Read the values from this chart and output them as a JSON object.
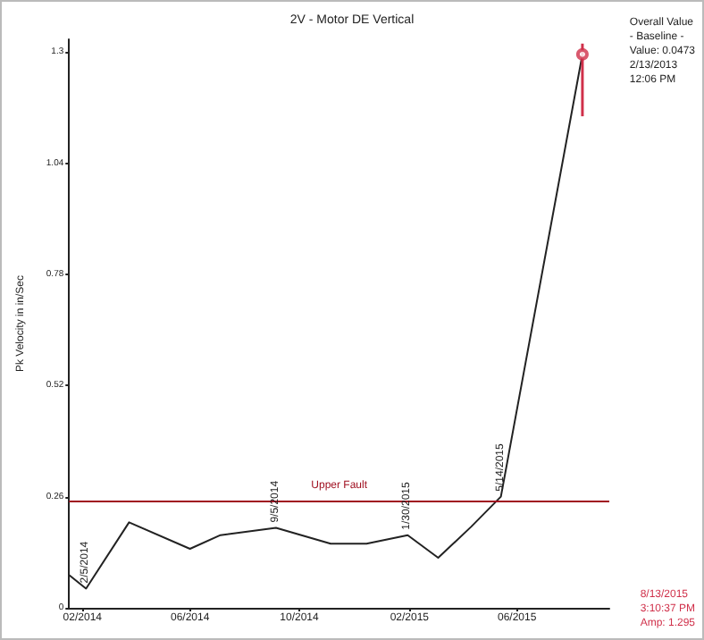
{
  "chart_data": {
    "type": "line",
    "title": "2V - Motor DE Vertical",
    "ylabel": "Pk Velocity in in/Sec",
    "xlim": [
      "2014-01-17",
      "2015-09-12"
    ],
    "xticks": [
      {
        "value": "2014-02-01",
        "label": "02/2014"
      },
      {
        "value": "2014-06-01",
        "label": "06/2014"
      },
      {
        "value": "2014-10-01",
        "label": "10/2014"
      },
      {
        "value": "2015-02-01",
        "label": "02/2015"
      },
      {
        "value": "2015-06-01",
        "label": "06/2015"
      }
    ],
    "ylim": [
      0,
      1.33
    ],
    "yticks": [
      0,
      0.26,
      0.52,
      0.78,
      1.04,
      1.3
    ],
    "series": [
      {
        "marker": "none",
        "color": "#222222",
        "x": [
          "2014-01-17",
          "2014-02-05",
          "2014-03-25",
          "2014-06-01",
          "2014-07-05",
          "2014-09-05",
          "2014-11-05",
          "2014-12-15",
          "2015-01-30",
          "2015-03-05",
          "2015-04-11",
          "2015-05-14",
          "2015-08-13"
        ],
        "values": [
          0.077,
          0.045,
          0.2,
          0.138,
          0.17,
          0.187,
          0.15,
          0.15,
          0.17,
          0.117,
          0.19,
          0.26,
          1.295
        ]
      },
      {
        "type": "scatter",
        "marker": "circle",
        "color": "#d0304a",
        "x": [
          "2015-08-13"
        ],
        "values": [
          1.295
        ],
        "errors": [
          [
            1.15,
            1.32
          ]
        ]
      }
    ],
    "ref_lines": [
      {
        "axis": "y",
        "value": 0.25,
        "label": "Upper Fault",
        "color": "#a01020"
      }
    ],
    "annotations": [
      {
        "text": "2/5/2014",
        "x": "2014-02-05",
        "y": 0.045
      },
      {
        "text": "9/5/2014",
        "x": "2014-09-05",
        "y": 0.187
      },
      {
        "text": "1/30/2015",
        "x": "2015-01-30",
        "y": 0.17
      },
      {
        "text": "5/14/2015",
        "x": "2015-05-14",
        "y": 0.26
      },
      "Overall Value\n- Baseline -\nValue: 0.0473\n2/13/2013\n12:06 PM",
      "8/13/2015\n3:10:37 PM\nAmp: 1.295"
    ],
    "grid": false
  }
}
